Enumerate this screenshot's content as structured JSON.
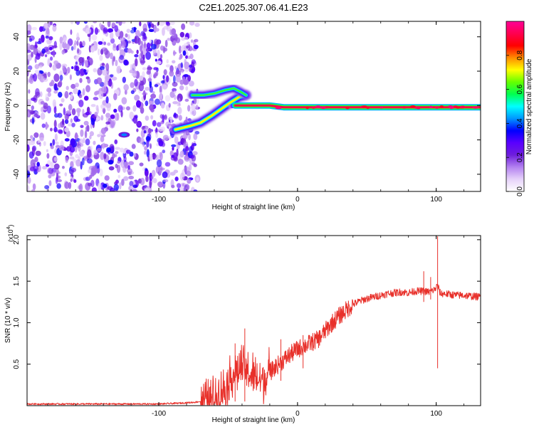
{
  "figure": {
    "title": "C2E1.2025.307.06.41.E23"
  },
  "chart_data": [
    {
      "type": "heatmap",
      "name": "spectrogram",
      "xlabel": "Height of straight line (km)",
      "ylabel": "Frequency (Hz)",
      "xlim": [
        -195,
        132
      ],
      "ylim": [
        -50,
        49
      ],
      "xticks": [
        -100,
        0,
        100
      ],
      "yticks": [
        -40,
        -20,
        0,
        20,
        40
      ],
      "colorbar": {
        "label": "Normalized spectral amplitude",
        "range": [
          0.0,
          1.0
        ],
        "ticks": [
          0.0,
          0.2,
          0.4,
          0.6,
          0.8
        ],
        "colormap": [
          "#ffffff",
          "#e6d2fa",
          "#b482f0",
          "#6e1edc",
          "#5a00ff",
          "#0000ff",
          "#0096ff",
          "#00ffff",
          "#00ff50",
          "#64ff00",
          "#ffff00",
          "#ff8c00",
          "#ff0000",
          "#ff0050",
          "#ff0096"
        ]
      },
      "noise_region_x": [
        -195,
        -78
      ],
      "features": [
        {
          "name": "main-echo-line",
          "x": [
            -45,
            -30,
            -20,
            -10,
            0,
            20,
            50,
            80,
            100,
            132
          ],
          "y": [
            0,
            0,
            0,
            -1,
            -1,
            -1,
            -1,
            -1,
            -1,
            -1
          ]
        },
        {
          "name": "lower-branch",
          "x": [
            -88,
            -78,
            -70,
            -62,
            -55,
            -48,
            -42,
            -37
          ],
          "y": [
            -14,
            -12,
            -10,
            -6,
            -2,
            2,
            5,
            6
          ]
        },
        {
          "name": "upper-branch",
          "x": [
            -76,
            -68,
            -60,
            -52,
            -46,
            -41,
            -37
          ],
          "y": [
            6,
            6,
            7,
            9,
            10,
            8,
            6
          ]
        },
        {
          "name": "noise-blob",
          "x": [
            -125
          ],
          "y": [
            -17
          ]
        }
      ]
    },
    {
      "type": "line",
      "name": "snr",
      "xlabel": "Height of straight line (km)",
      "ylabel": "SNR (10 * v/v)",
      "y_multiplier": "(x10",
      "y_multiplier_exp": "4",
      "y_multiplier_close": ")",
      "xlim": [
        -195,
        132
      ],
      "ylim": [
        0,
        2.05
      ],
      "xticks": [
        -100,
        0,
        100
      ],
      "yticks": [
        0.5,
        1.0,
        1.5,
        2.0
      ],
      "ytick_labels": [
        "0.5",
        "1.0",
        "1.5",
        "2.0"
      ],
      "series": [
        {
          "name": "SNR",
          "color": "#e8302a",
          "x": [
            -195,
            -160,
            -130,
            -100,
            -85,
            -75,
            -65,
            -58,
            -52,
            -48,
            -44,
            -40,
            -36,
            -32,
            -28,
            -24,
            -20,
            -15,
            -10,
            -5,
            0,
            5,
            10,
            15,
            20,
            25,
            30,
            35,
            40,
            45,
            50,
            55,
            60,
            65,
            70,
            75,
            80,
            85,
            90,
            95,
            99,
            101,
            103,
            106,
            110,
            115,
            120,
            125,
            132
          ],
          "y": [
            0.02,
            0.02,
            0.02,
            0.02,
            0.03,
            0.04,
            0.06,
            0.12,
            0.22,
            0.35,
            0.42,
            0.45,
            0.4,
            0.35,
            0.3,
            0.33,
            0.4,
            0.48,
            0.55,
            0.62,
            0.68,
            0.72,
            0.76,
            0.8,
            0.9,
            1.0,
            1.08,
            1.15,
            1.22,
            1.26,
            1.29,
            1.31,
            1.33,
            1.35,
            1.36,
            1.37,
            1.36,
            1.38,
            1.38,
            1.37,
            1.4,
            1.45,
            1.35,
            1.35,
            1.34,
            1.33,
            1.33,
            1.32,
            1.31
          ],
          "spikes": [
            {
              "x": 101,
              "top": 2.04,
              "bottom": 0.45
            },
            {
              "x": 91,
              "top": 1.62,
              "bottom": 1.25
            },
            {
              "x": 96,
              "top": 1.55,
              "bottom": 1.28
            },
            {
              "x": -38,
              "top": 0.93,
              "bottom": 0.05
            },
            {
              "x": -45,
              "top": 0.75,
              "bottom": 0.05
            },
            {
              "x": -12,
              "top": 0.8,
              "bottom": 0.3
            },
            {
              "x": 4,
              "top": 0.85,
              "bottom": 0.45
            }
          ]
        }
      ]
    }
  ]
}
